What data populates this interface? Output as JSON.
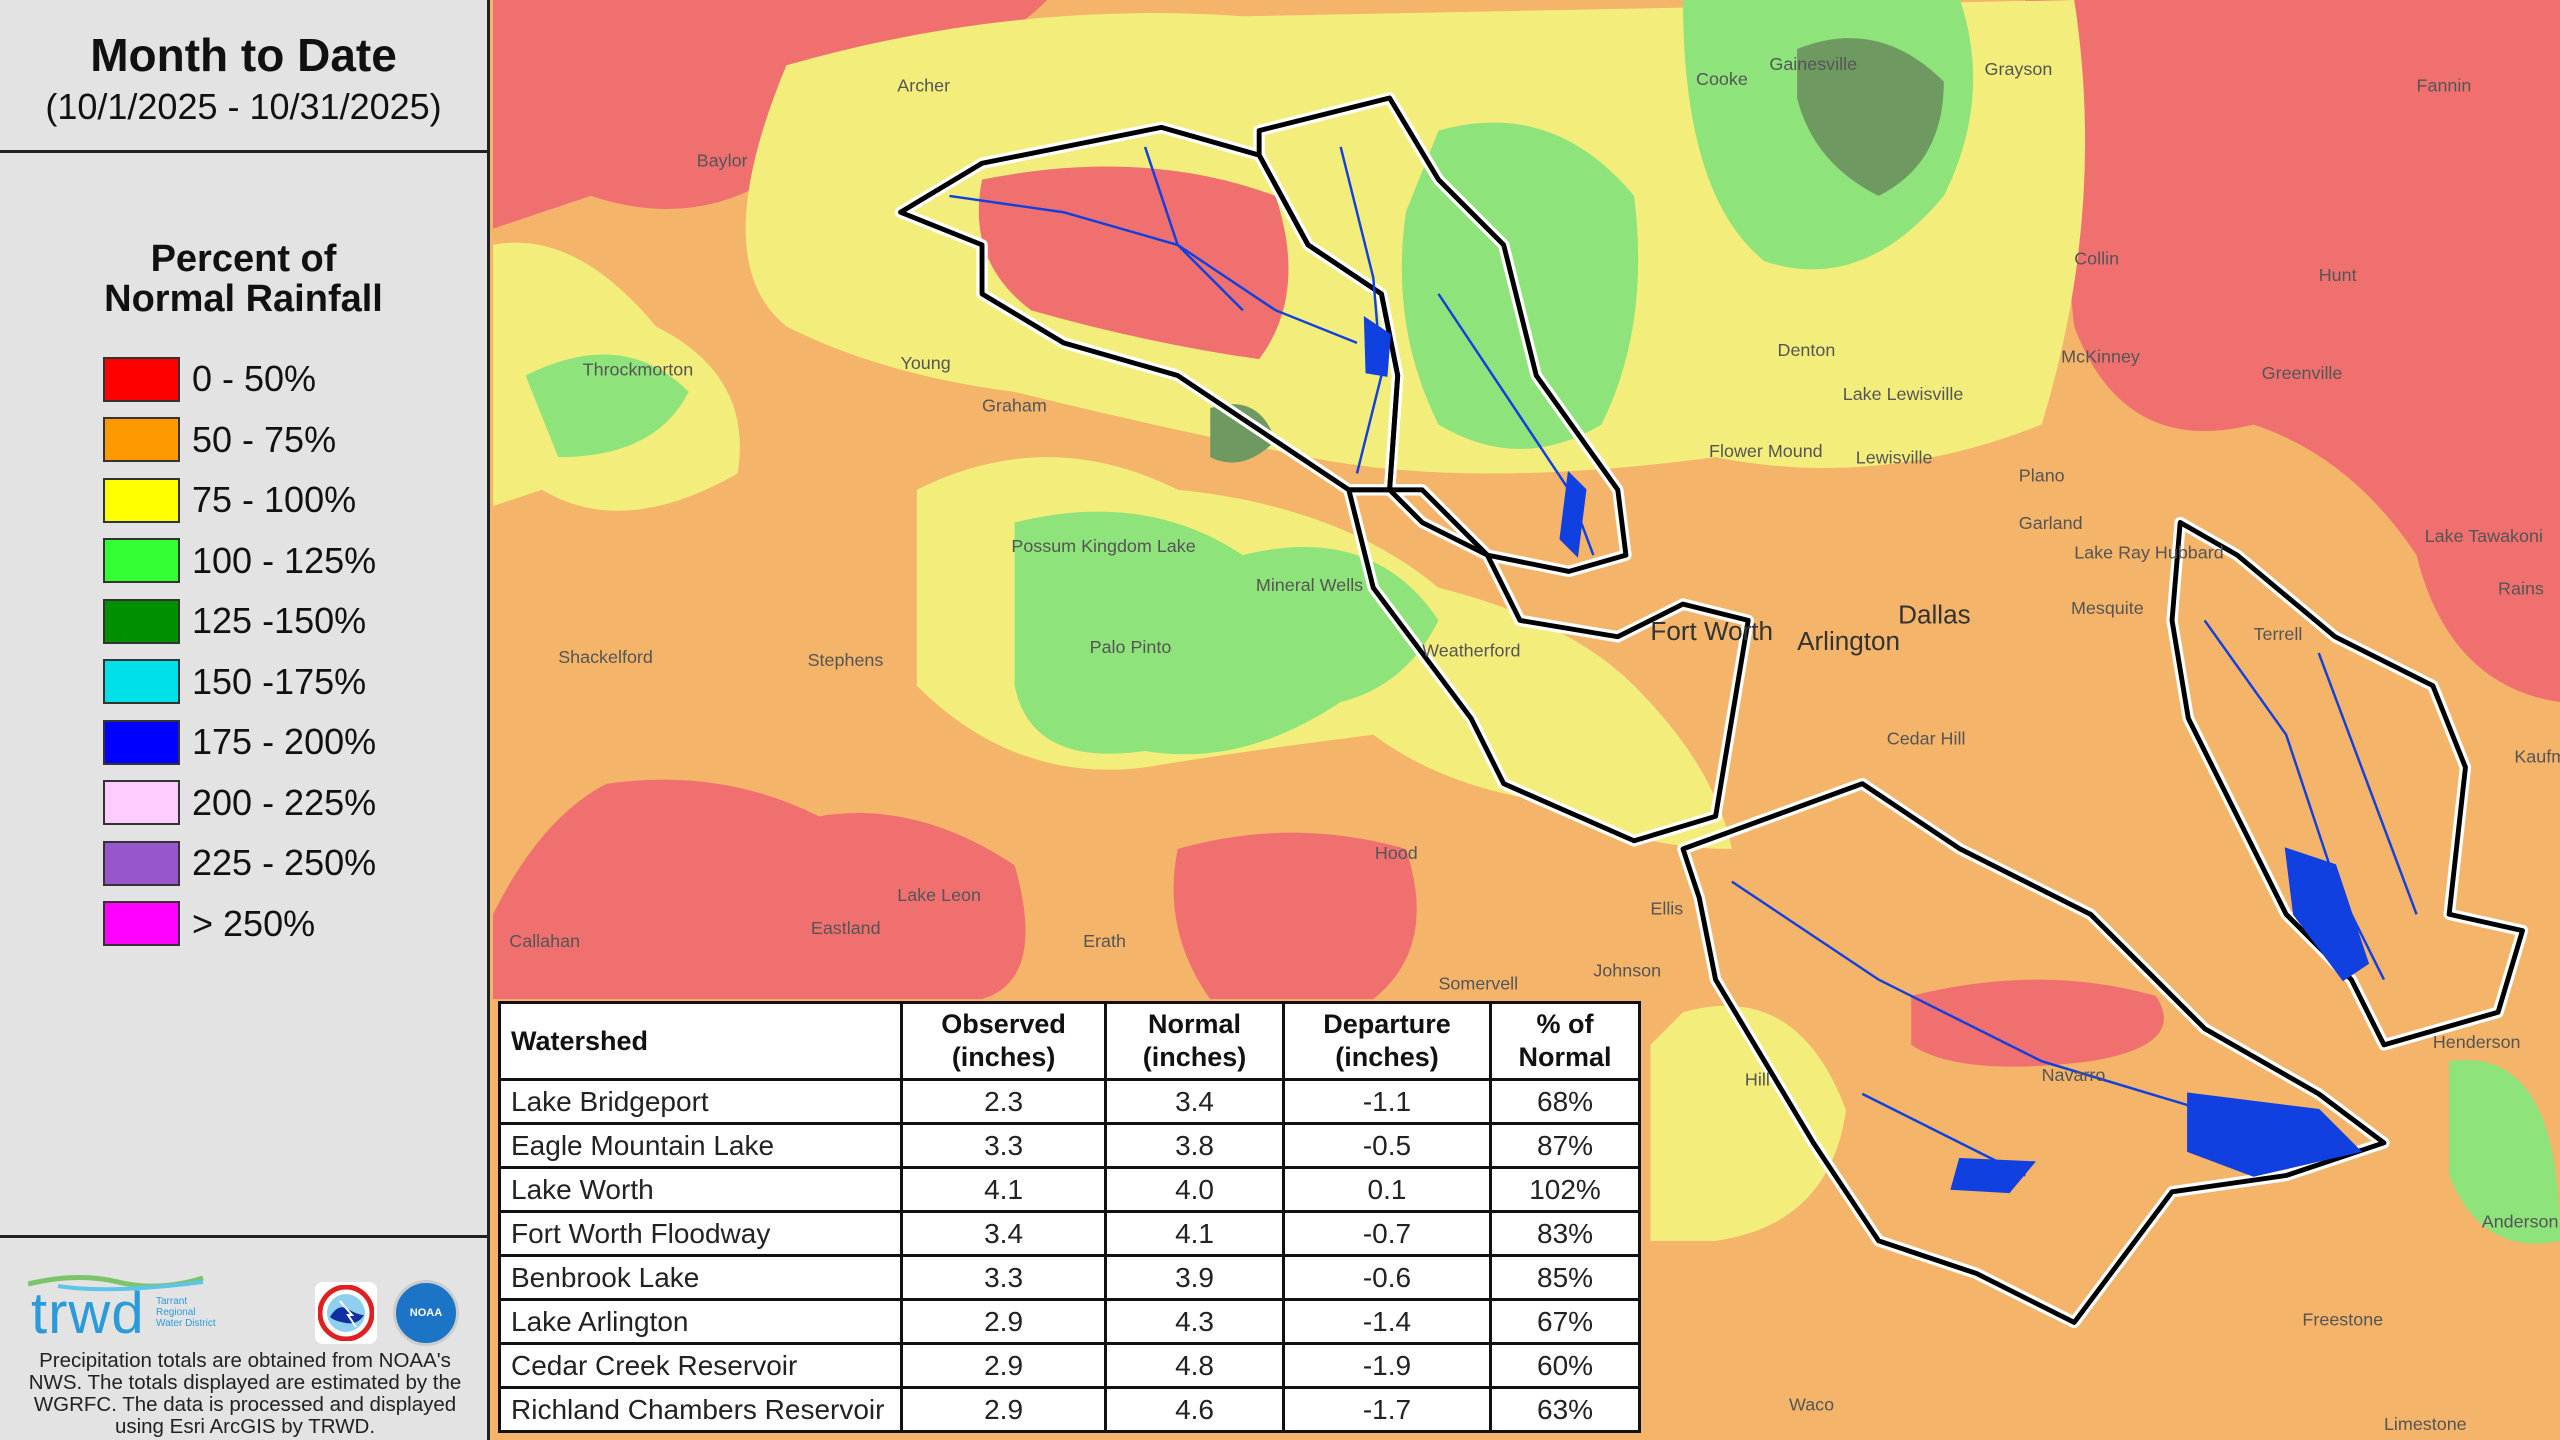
{
  "header": {
    "title": "Month to Date",
    "date_range": "(10/1/2025 - 10/31/2025)"
  },
  "legend": {
    "title_line1": "Percent of",
    "title_line2": "Normal Rainfall",
    "items": [
      {
        "label": "0 - 50%",
        "color": "#ff0000"
      },
      {
        "label": "50 - 75%",
        "color": "#ff9900"
      },
      {
        "label": "75 - 100%",
        "color": "#ffff00"
      },
      {
        "label": "100 - 125%",
        "color": "#33ff33"
      },
      {
        "label": "125 -150%",
        "color": "#008f00"
      },
      {
        "label": "150 -175%",
        "color": "#00e0e8"
      },
      {
        "label": "175 - 200%",
        "color": "#0000ff"
      },
      {
        "label": "200 - 225%",
        "color": "#ffccff"
      },
      {
        "label": "225 - 250%",
        "color": "#9955cc"
      },
      {
        "label": "> 250%",
        "color": "#ff00ff"
      }
    ]
  },
  "footer": {
    "logo_text": "trwd",
    "logo_sub": "Tarrant Regional Water District",
    "nws_logo": "NATIONAL WEATHER SERVICE",
    "noaa_logo": "NOAA",
    "disclaimer": "Precipitation totals are obtained from NOAA's NWS. The totals displayed are estimated by the WGRFC. The data is processed and displayed using Esri ArcGIS by TRWD."
  },
  "table": {
    "headers": [
      "Watershed",
      "Observed (inches)",
      "Normal (inches)",
      "Departure (inches)",
      "% of Normal"
    ],
    "rows": [
      [
        "Lake Bridgeport",
        "2.3",
        "3.4",
        "-1.1",
        "68%"
      ],
      [
        "Eagle Mountain Lake",
        "3.3",
        "3.8",
        "-0.5",
        "87%"
      ],
      [
        "Lake Worth",
        "4.1",
        "4.0",
        "0.1",
        "102%"
      ],
      [
        "Fort Worth Floodway",
        "3.4",
        "4.1",
        "-0.7",
        "83%"
      ],
      [
        "Benbrook Lake",
        "3.3",
        "3.9",
        "-0.6",
        "85%"
      ],
      [
        "Lake Arlington",
        "2.9",
        "4.3",
        "-1.4",
        "67%"
      ],
      [
        "Cedar Creek Reservoir",
        "2.9",
        "4.8",
        "-1.9",
        "60%"
      ],
      [
        "Richland Chambers Reservoir",
        "2.9",
        "4.6",
        "-1.7",
        "63%"
      ]
    ]
  },
  "map": {
    "places": [
      "Dallas",
      "Fort Worth",
      "Arlington",
      "Denton",
      "McKinney",
      "Plano",
      "Garland",
      "Mesquite",
      "Lewisville",
      "Flower Mound",
      "Gainesville",
      "Greenville",
      "Terrell",
      "Weatherford",
      "Mineral Wells",
      "Graham",
      "Young",
      "Throckmorton",
      "Archer",
      "Baylor",
      "Stephens",
      "Shackelford",
      "Palo Pinto",
      "Eastland",
      "Erath",
      "Hood",
      "Johnson",
      "Navarro",
      "Waco",
      "Freestone",
      "Kaufman",
      "Hill",
      "Cooke",
      "Grayson",
      "Collin",
      "Hunt",
      "Fannin",
      "Ellis",
      "Cedar Hill",
      "Possum Kingdom Lake",
      "Lake Lewisville",
      "Lake Tawakoni",
      "Lake Ray Hubbard",
      "Lake Leon",
      "Henderson",
      "Anderson",
      "Somervell",
      "Callahan",
      "Rains",
      "Limestone"
    ]
  }
}
